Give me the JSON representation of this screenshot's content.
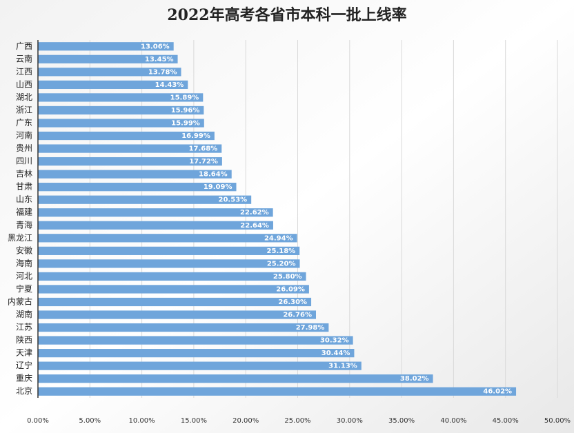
{
  "chart_data": {
    "type": "bar",
    "orientation": "horizontal",
    "title": "2022年高考各省市本科一批上线率",
    "categories": [
      "广西",
      "云南",
      "江西",
      "山西",
      "湖北",
      "浙江",
      "广东",
      "河南",
      "贵州",
      "四川",
      "吉林",
      "甘肃",
      "山东",
      "福建",
      "青海",
      "黑龙江",
      "安徽",
      "海南",
      "河北",
      "宁夏",
      "内蒙古",
      "湖南",
      "江苏",
      "陕西",
      "天津",
      "辽宁",
      "重庆",
      "北京"
    ],
    "values": [
      13.06,
      13.45,
      13.78,
      14.43,
      15.89,
      15.96,
      15.99,
      16.99,
      17.68,
      17.72,
      18.64,
      19.09,
      20.53,
      22.62,
      22.64,
      24.94,
      25.18,
      25.2,
      25.8,
      26.09,
      26.3,
      26.76,
      27.98,
      30.32,
      30.44,
      31.13,
      38.02,
      46.02
    ],
    "value_labels": [
      "13.06%",
      "13.45%",
      "13.78%",
      "14.43%",
      "15.89%",
      "15.96%",
      "15.99%",
      "16.99%",
      "17.68%",
      "17.72%",
      "18.64%",
      "19.09%",
      "20.53%",
      "22.62%",
      "22.64%",
      "24.94%",
      "25.18%",
      "25.20%",
      "25.80%",
      "26.09%",
      "26.30%",
      "26.76%",
      "27.98%",
      "30.32%",
      "30.44%",
      "31.13%",
      "38.02%",
      "46.02%"
    ],
    "color": "#6fa5db",
    "xlim": [
      0,
      50
    ],
    "xticks": [
      {
        "value": 0,
        "label": "0.00%"
      },
      {
        "value": 5,
        "label": "5.00%"
      },
      {
        "value": 10,
        "label": "10.00%"
      },
      {
        "value": 15,
        "label": "15.00%"
      },
      {
        "value": 20,
        "label": "20.00%"
      },
      {
        "value": 25,
        "label": "25.00%"
      },
      {
        "value": 30,
        "label": "30.00%"
      },
      {
        "value": 35,
        "label": "35.00%"
      },
      {
        "value": 40,
        "label": "40.00%"
      },
      {
        "value": 45,
        "label": "45.00%"
      },
      {
        "value": 50,
        "label": "50.00%"
      }
    ],
    "grid": true
  }
}
